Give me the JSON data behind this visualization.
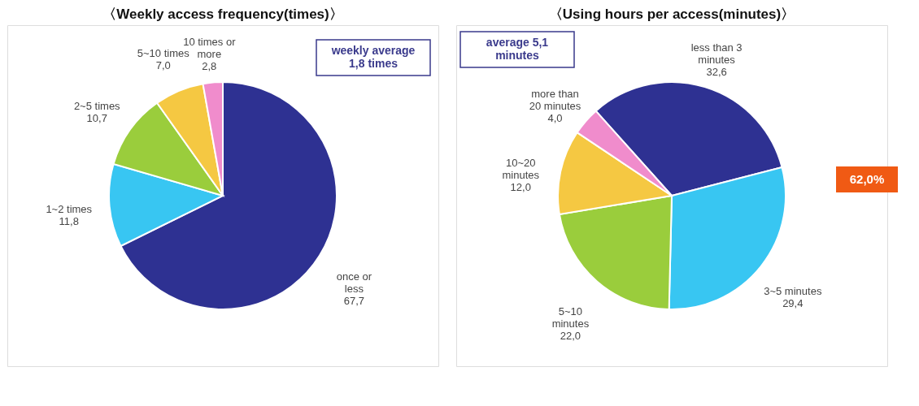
{
  "chart_data": [
    {
      "type": "pie",
      "title": "〈Weekly access frequency(times)〉",
      "categories": [
        "once or less",
        "1~2 times",
        "2~5 times",
        "5~10 times",
        "10 times or more"
      ],
      "values": [
        67.7,
        11.8,
        10.7,
        7.0,
        2.8
      ],
      "value_labels": [
        "67,7",
        "11,8",
        "10,7",
        "7,0",
        "2,8"
      ],
      "colors": [
        "#2e3192",
        "#38c6f2",
        "#9acd3c",
        "#f5c842",
        "#f08ccc"
      ],
      "annotations": [
        "weekly average 1,8 times"
      ]
    },
    {
      "type": "pie",
      "title": "〈Using hours per access(minutes)〉",
      "categories": [
        "less than 3 minutes",
        "3~5 minutes",
        "5~10 minutes",
        "10~20 minutes",
        "more than 20 minutes"
      ],
      "values": [
        32.6,
        29.4,
        22.0,
        12.0,
        4.0
      ],
      "value_labels": [
        "32,6",
        "29,4",
        "22,0",
        "12,0",
        "4,0"
      ],
      "colors": [
        "#2e3192",
        "#38c6f2",
        "#9acd3c",
        "#f5c842",
        "#f08ccc"
      ],
      "annotations": [
        "average 5,1 minutes",
        "62,0%"
      ]
    }
  ]
}
